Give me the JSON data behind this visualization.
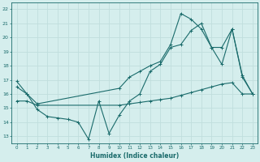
{
  "xlabel": "Humidex (Indice chaleur)",
  "xlim": [
    -0.5,
    23.5
  ],
  "ylim": [
    12.5,
    22.5
  ],
  "yticks": [
    13,
    14,
    15,
    16,
    17,
    18,
    19,
    20,
    21,
    22
  ],
  "xticks": [
    0,
    1,
    2,
    3,
    4,
    5,
    6,
    7,
    8,
    9,
    10,
    11,
    12,
    13,
    14,
    15,
    16,
    17,
    18,
    19,
    20,
    21,
    22,
    23
  ],
  "xtick_labels": [
    "0",
    "1",
    "2",
    "3",
    "4",
    "5",
    "6",
    "7",
    "8",
    "9",
    "10",
    "11",
    "12",
    "13",
    "14",
    "15",
    "16",
    "17",
    "18",
    "19",
    "20",
    "21",
    "22",
    "23"
  ],
  "bg_color": "#d5eeed",
  "line_color": "#1a6b6b",
  "grid_color": "#c0dedd",
  "line1_x": [
    0,
    1,
    2,
    3,
    4,
    5,
    6,
    7,
    8,
    9,
    10,
    11,
    12,
    13,
    14,
    15,
    16,
    17,
    18,
    19,
    20,
    21,
    22,
    23
  ],
  "line1_y": [
    16.9,
    16.0,
    14.9,
    14.4,
    14.3,
    14.2,
    14.0,
    12.8,
    15.5,
    13.2,
    14.5,
    15.5,
    16.0,
    17.6,
    18.1,
    19.3,
    19.5,
    20.5,
    21.0,
    19.3,
    18.1,
    20.6,
    17.2,
    16.0
  ],
  "line2_x": [
    0,
    1,
    2,
    10,
    11,
    12,
    13,
    14,
    15,
    16,
    17,
    18,
    19,
    20,
    21,
    22,
    23
  ],
  "line2_y": [
    16.5,
    16.0,
    15.3,
    16.4,
    17.2,
    17.6,
    18.0,
    18.3,
    19.5,
    21.7,
    21.3,
    20.6,
    19.3,
    19.3,
    20.6,
    17.3,
    16.0
  ],
  "line3_x": [
    0,
    1,
    2,
    10,
    11,
    12,
    13,
    14,
    15,
    16,
    17,
    18,
    19,
    20,
    21,
    22,
    23
  ],
  "line3_y": [
    15.5,
    15.5,
    15.2,
    15.2,
    15.3,
    15.4,
    15.5,
    15.6,
    15.7,
    15.9,
    16.1,
    16.3,
    16.5,
    16.7,
    16.8,
    16.0,
    16.0
  ],
  "marker_size": 2.5,
  "linewidth": 0.8
}
